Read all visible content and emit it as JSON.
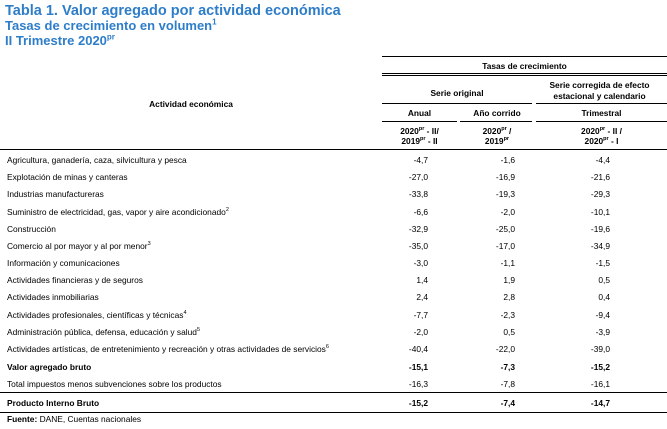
{
  "title": {
    "line1": "Tabla 1. Valor agregado por actividad económica",
    "line2": "Tasas de crecimiento en volumen",
    "line2_sup": "1",
    "line3": "II Trimestre 2020",
    "line3_sup": "pr"
  },
  "header": {
    "group": "Tasas de crecimiento",
    "activity": "Actividad económica",
    "serie_original": "Serie original",
    "serie_corregida_1": "Serie corregida de efecto",
    "serie_corregida_2": "estacional y calendario",
    "anual": "Anual",
    "ano_corrido": "Año corrido",
    "trimestral": "Trimestral",
    "p1_a": "2020",
    "p1_a_sup": "pr",
    "p1_b": " - II/",
    "p1_c": "2019",
    "p1_c_sup": "pr",
    "p1_d": " - II",
    "p2_a": "2020",
    "p2_a_sup": "pr",
    "p2_b": " /",
    "p2_c": "2019",
    "p2_c_sup": "pr",
    "p3_a": "2020",
    "p3_a_sup": "pr",
    "p3_b": " - II /",
    "p3_c": "2020",
    "p3_c_sup": "pr",
    "p3_d": " - I"
  },
  "rows": [
    {
      "name": "Agricultura, ganadería, caza, silvicultura y pesca",
      "sup": "",
      "anual": "-4,7",
      "corrido": "-1,6",
      "trim": "-4,4",
      "bold": false
    },
    {
      "name": "Explotación de minas y canteras",
      "sup": "",
      "anual": "-27,0",
      "corrido": "-16,9",
      "trim": "-21,6",
      "bold": false
    },
    {
      "name": "Industrias manufactureras",
      "sup": "",
      "anual": "-33,8",
      "corrido": "-19,3",
      "trim": "-29,3",
      "bold": false
    },
    {
      "name": "Suministro de electricidad, gas, vapor y aire acondicionado",
      "sup": "2",
      "anual": "-6,6",
      "corrido": "-2,0",
      "trim": "-10,1",
      "bold": false
    },
    {
      "name": "Construcción",
      "sup": "",
      "anual": "-32,9",
      "corrido": "-25,0",
      "trim": "-19,6",
      "bold": false
    },
    {
      "name": "Comercio al por mayor y al por menor",
      "sup": "3",
      "anual": "-35,0",
      "corrido": "-17,0",
      "trim": "-34,9",
      "bold": false
    },
    {
      "name": "Información y comunicaciones",
      "sup": "",
      "anual": "-3,0",
      "corrido": "-1,1",
      "trim": "-1,5",
      "bold": false
    },
    {
      "name": "Actividades financieras y de seguros",
      "sup": "",
      "anual": "1,4",
      "corrido": "1,9",
      "trim": "0,5",
      "bold": false
    },
    {
      "name": "Actividades inmobiliarias",
      "sup": "",
      "anual": "2,4",
      "corrido": "2,8",
      "trim": "0,4",
      "bold": false
    },
    {
      "name": "Actividades profesionales, científicas y técnicas",
      "sup": "4",
      "anual": "-7,7",
      "corrido": "-2,3",
      "trim": "-9,4",
      "bold": false
    },
    {
      "name": "Administración pública, defensa, educación y salud",
      "sup": "5",
      "anual": "-2,0",
      "corrido": "0,5",
      "trim": "-3,9",
      "bold": false
    },
    {
      "name": "Actividades artísticas, de entretenimiento y recreación y otras actividades de servicios",
      "sup": "6",
      "anual": "-40,4",
      "corrido": "-22,0",
      "trim": "-39,0",
      "bold": false
    },
    {
      "name": "Valor agregado bruto",
      "sup": "",
      "anual": "-15,1",
      "corrido": "-7,3",
      "trim": "-15,2",
      "bold": true
    },
    {
      "name": "Total impuestos menos subvenciones sobre los productos",
      "sup": "",
      "anual": "-16,3",
      "corrido": "-7,8",
      "trim": "-16,1",
      "bold": false
    },
    {
      "name": "Producto Interno Bruto",
      "sup": "",
      "anual": "-15,2",
      "corrido": "-7,4",
      "trim": "-14,7",
      "bold": true
    }
  ],
  "footer": {
    "label": "Fuente:",
    "text": " DANE, Cuentas nacionales"
  }
}
